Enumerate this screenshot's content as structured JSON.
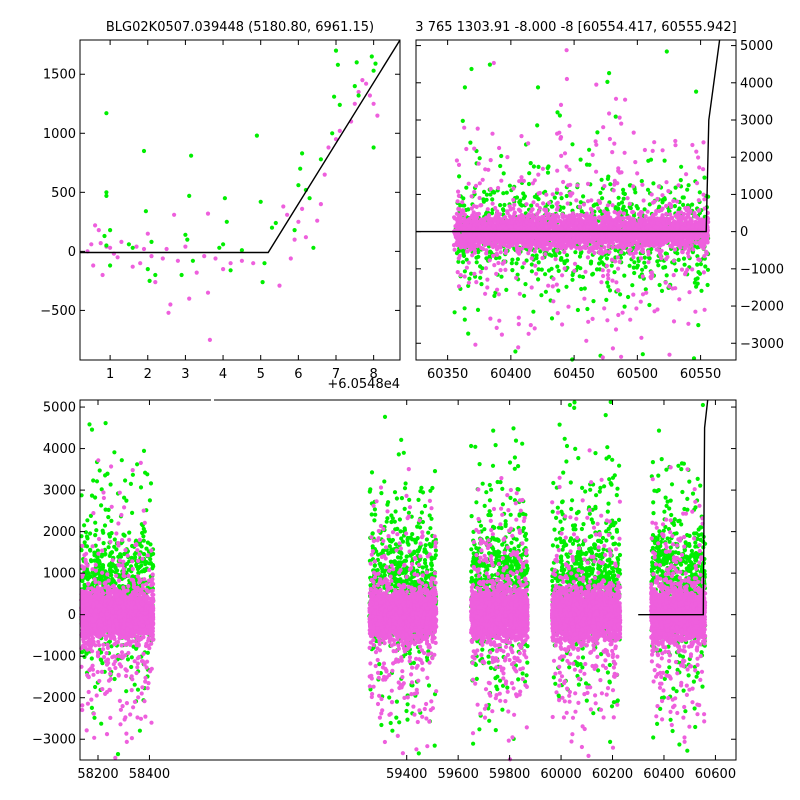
{
  "figure": {
    "colors": {
      "green": "#00ee00",
      "magenta": "#ee5fdd",
      "model": "#000000"
    }
  },
  "chart_data": [
    {
      "type": "scatter",
      "title": "BLG02K0507.039448 (5180.80, 6961.15)",
      "xlim": [
        0.2,
        8.7
      ],
      "ylim": [
        -920,
        1790
      ],
      "x_offset_label": "+6.0548e4",
      "x_ticks": [
        1,
        2,
        3,
        4,
        5,
        6,
        7,
        8
      ],
      "x_tick_labels": [
        "1",
        "2",
        "3",
        "4",
        "5",
        "6",
        "7",
        "8"
      ],
      "y_ticks": [
        -500,
        0,
        500,
        1000,
        1500
      ],
      "y_tick_labels": [
        "−500",
        "0",
        "500",
        "1000",
        "1500"
      ],
      "y_axis_side": "left",
      "model": {
        "x": [
          0.2,
          5.2,
          8.7
        ],
        "y": [
          -10,
          -10,
          1790
        ]
      },
      "series": [
        {
          "color_key": "magenta",
          "points": [
            [
              0.4,
              0
            ],
            [
              0.5,
              60
            ],
            [
              0.55,
              -120
            ],
            [
              0.6,
              220
            ],
            [
              0.7,
              180
            ],
            [
              0.75,
              70
            ],
            [
              0.8,
              -200
            ],
            [
              0.9,
              40
            ],
            [
              1.0,
              30
            ],
            [
              1.1,
              -20
            ],
            [
              1.2,
              -50
            ],
            [
              1.3,
              80
            ],
            [
              1.6,
              -130
            ],
            [
              1.7,
              40
            ],
            [
              1.8,
              -100
            ],
            [
              1.9,
              20
            ],
            [
              2.0,
              150
            ],
            [
              2.1,
              -40
            ],
            [
              2.2,
              -260
            ],
            [
              2.4,
              -60
            ],
            [
              2.5,
              20
            ],
            [
              2.55,
              -520
            ],
            [
              2.6,
              -450
            ],
            [
              2.7,
              310
            ],
            [
              2.8,
              -80
            ],
            [
              3.0,
              40
            ],
            [
              3.1,
              -400
            ],
            [
              3.3,
              -180
            ],
            [
              3.5,
              -40
            ],
            [
              3.6,
              320
            ],
            [
              3.6,
              -350
            ],
            [
              3.65,
              -750
            ],
            [
              3.8,
              -60
            ],
            [
              4.0,
              -150
            ],
            [
              4.2,
              -100
            ],
            [
              4.5,
              -80
            ],
            [
              4.8,
              -100
            ],
            [
              5.5,
              -290
            ],
            [
              5.6,
              380
            ],
            [
              5.7,
              310
            ],
            [
              5.8,
              -60
            ],
            [
              5.9,
              100
            ],
            [
              6.0,
              250
            ],
            [
              6.1,
              360
            ],
            [
              6.2,
              120
            ],
            [
              6.5,
              260
            ],
            [
              6.6,
              400
            ],
            [
              6.7,
              650
            ],
            [
              6.8,
              880
            ],
            [
              7.0,
              950
            ],
            [
              7.1,
              1020
            ],
            [
              7.4,
              1100
            ],
            [
              7.5,
              1250
            ],
            [
              7.6,
              1350
            ],
            [
              7.7,
              1450
            ],
            [
              7.8,
              1420
            ],
            [
              7.9,
              1320
            ],
            [
              8.0,
              1250
            ],
            [
              8.1,
              1150
            ]
          ]
        },
        {
          "color_key": "green",
          "points": [
            [
              0.9,
              1170
            ],
            [
              0.9,
              500
            ],
            [
              0.9,
              470
            ],
            [
              0.85,
              130
            ],
            [
              0.9,
              50
            ],
            [
              1.0,
              -120
            ],
            [
              1.0,
              180
            ],
            [
              1.5,
              60
            ],
            [
              1.6,
              30
            ],
            [
              1.9,
              850
            ],
            [
              1.95,
              340
            ],
            [
              2.0,
              -150
            ],
            [
              2.05,
              -250
            ],
            [
              2.1,
              80
            ],
            [
              2.2,
              -200
            ],
            [
              2.9,
              -200
            ],
            [
              3.0,
              140
            ],
            [
              3.05,
              100
            ],
            [
              3.1,
              470
            ],
            [
              3.15,
              810
            ],
            [
              3.2,
              -80
            ],
            [
              3.9,
              30
            ],
            [
              4.0,
              60
            ],
            [
              4.05,
              450
            ],
            [
              4.1,
              250
            ],
            [
              4.2,
              -160
            ],
            [
              4.5,
              10
            ],
            [
              4.9,
              980
            ],
            [
              5.0,
              420
            ],
            [
              5.05,
              -260
            ],
            [
              5.1,
              -100
            ],
            [
              5.3,
              200
            ],
            [
              5.4,
              240
            ],
            [
              5.9,
              180
            ],
            [
              6.0,
              560
            ],
            [
              6.05,
              700
            ],
            [
              6.1,
              830
            ],
            [
              6.2,
              520
            ],
            [
              6.3,
              450
            ],
            [
              6.4,
              30
            ],
            [
              6.6,
              780
            ],
            [
              6.9,
              1000
            ],
            [
              6.95,
              1310
            ],
            [
              7.0,
              1700
            ],
            [
              7.05,
              1580
            ],
            [
              7.1,
              1240
            ],
            [
              7.5,
              1400
            ],
            [
              7.55,
              1600
            ],
            [
              7.6,
              1320
            ],
            [
              7.95,
              1650
            ],
            [
              8.0,
              1530
            ],
            [
              8.0,
              880
            ],
            [
              8.05,
              1590
            ]
          ]
        }
      ]
    },
    {
      "type": "scatter",
      "title": "3 765 1303.91 -8.000 -8 [60554.417, 60555.942]",
      "xlim": [
        60325,
        60578
      ],
      "ylim": [
        -3450,
        5150
      ],
      "x_ticks": [
        60350,
        60400,
        60450,
        60500,
        60550
      ],
      "x_tick_labels": [
        "60350",
        "60400",
        "60450",
        "60500",
        "60550"
      ],
      "y_ticks": [
        -3000,
        -2000,
        -1000,
        0,
        1000,
        2000,
        3000,
        4000,
        5000
      ],
      "y_tick_labels": [
        "−3000",
        "−2000",
        "−1000",
        "0",
        "1000",
        "2000",
        "3000",
        "4000",
        "5000"
      ],
      "y_axis_side": "right",
      "model": {
        "x": [
          60325,
          60554.4,
          60556.5,
          60565
        ],
        "y": [
          0,
          0,
          3000,
          5150
        ]
      },
      "series": [
        {
          "color_key": "green",
          "x_range": [
            60355,
            60556
          ],
          "spread": 700,
          "outlier_spread": 2200,
          "count": 950,
          "seed": 11
        },
        {
          "color_key": "magenta",
          "x_range": [
            60355,
            60556
          ],
          "spread": 230,
          "outlier_spread": 1500,
          "count": 3200,
          "seed": 23
        }
      ]
    },
    {
      "type": "scatter",
      "title": "",
      "xlim": [
        58130,
        60680
      ],
      "ylim": [
        -3500,
        5170
      ],
      "x_ticks": [
        58200,
        58400,
        59400,
        59600,
        59800,
        60000,
        60200,
        60400,
        60600
      ],
      "x_tick_labels": [
        "58200",
        "58400",
        "59400",
        "59600",
        "59800",
        "60000",
        "60200",
        "60400",
        "60600"
      ],
      "y_ticks": [
        -3000,
        -2000,
        -1000,
        0,
        1000,
        2000,
        3000,
        4000,
        5000
      ],
      "y_tick_labels": [
        "−3000",
        "−2000",
        "−1000",
        "0",
        "1000",
        "2000",
        "3000",
        "4000",
        "5000"
      ],
      "y_axis_side": "left",
      "model": {
        "x": [
          60300,
          60553,
          60558,
          60570
        ],
        "y": [
          0,
          0,
          4500,
          5170
        ]
      },
      "seasons": [
        {
          "x_range": [
            58135,
            58415
          ],
          "seed": 101
        },
        {
          "x_range": [
            59255,
            59515
          ],
          "seed": 202
        },
        {
          "x_range": [
            59650,
            59870
          ],
          "seed": 303
        },
        {
          "x_range": [
            59965,
            60230
          ],
          "seed": 404
        },
        {
          "x_range": [
            60350,
            60560
          ],
          "seed": 505
        }
      ]
    }
  ]
}
